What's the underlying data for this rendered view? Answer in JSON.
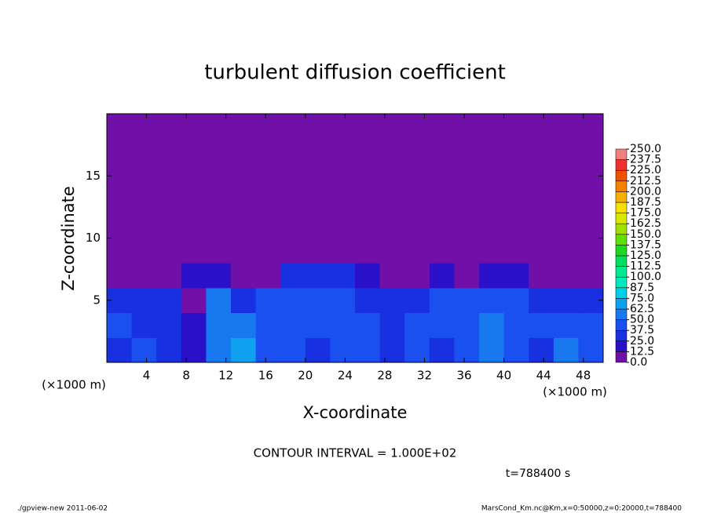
{
  "chart_data": {
    "type": "heatmap",
    "title": "turbulent diffusion coefficient",
    "x_label": "X-coordinate",
    "y_label": "Z-coordinate",
    "x_unit_label": "(×1000 m)",
    "y_unit_label": "(×1000 m)",
    "xlim": [
      0,
      50
    ],
    "ylim": [
      0,
      20
    ],
    "xticks": [
      4,
      8,
      12,
      16,
      20,
      24,
      28,
      32,
      36,
      40,
      44,
      48
    ],
    "yticks": [
      5,
      10,
      15
    ],
    "z": [
      [
        37,
        40,
        30,
        15,
        62,
        70,
        45,
        40,
        35,
        45,
        40,
        30,
        40,
        35,
        45,
        55,
        45,
        35,
        50,
        40
      ],
      [
        40,
        35,
        30,
        15,
        55,
        60,
        40,
        45,
        40,
        40,
        40,
        35,
        40,
        40,
        45,
        60,
        40,
        40,
        45,
        40
      ],
      [
        35,
        30,
        25,
        10,
        50,
        35,
        40,
        45,
        45,
        40,
        35,
        30,
        35,
        40,
        40,
        45,
        40,
        35,
        35,
        35
      ],
      [
        5,
        0,
        5,
        15,
        20,
        5,
        10,
        30,
        35,
        30,
        15,
        0,
        5,
        15,
        10,
        20,
        15,
        5,
        5,
        5
      ],
      [
        5,
        5,
        8,
        5,
        0,
        5,
        5,
        8,
        5,
        5,
        8,
        5,
        5,
        8,
        8,
        5,
        8,
        5,
        5,
        0
      ],
      [
        5,
        5,
        8,
        8,
        5,
        0,
        5,
        5,
        5,
        5,
        5,
        5,
        5,
        5,
        5,
        5,
        8,
        5,
        5,
        0
      ],
      [
        8,
        5,
        8,
        10,
        5,
        0,
        5,
        5,
        0,
        0,
        5,
        0,
        0,
        5,
        0,
        0,
        0,
        0,
        0,
        0
      ],
      [
        0,
        0,
        0,
        0,
        0,
        0,
        0,
        0,
        0,
        0,
        0,
        0,
        0,
        0,
        0,
        0,
        0,
        0,
        0,
        0
      ],
      [
        0,
        0,
        0,
        0,
        0,
        0,
        0,
        0,
        0,
        0,
        0,
        0,
        0,
        0,
        0,
        0,
        0,
        0,
        0,
        0
      ],
      [
        0,
        0,
        0,
        0,
        0,
        0,
        0,
        0,
        0,
        0,
        0,
        0,
        0,
        0,
        0,
        0,
        0,
        0,
        0,
        0
      ]
    ],
    "colorbar": {
      "ticks": [
        {
          "value": 0,
          "label": "0.0"
        },
        {
          "value": 12.5,
          "label": "12.5"
        },
        {
          "value": 25,
          "label": "25.0"
        },
        {
          "value": 37.5,
          "label": "37.5"
        },
        {
          "value": 50,
          "label": "50.0"
        },
        {
          "value": 62.5,
          "label": "62.5"
        },
        {
          "value": 75,
          "label": "75.0"
        },
        {
          "value": 87.5,
          "label": "87.5"
        },
        {
          "value": 100,
          "label": "100.0"
        },
        {
          "value": 112.5,
          "label": "112.5"
        },
        {
          "value": 125,
          "label": "125.0"
        },
        {
          "value": 137.5,
          "label": "137.5"
        },
        {
          "value": 150,
          "label": "150.0"
        },
        {
          "value": 162.5,
          "label": "162.5"
        },
        {
          "value": 175,
          "label": "175.0"
        },
        {
          "value": 187.5,
          "label": "187.5"
        },
        {
          "value": 200,
          "label": "200.0"
        },
        {
          "value": 212.5,
          "label": "212.5"
        },
        {
          "value": 225,
          "label": "225.0"
        },
        {
          "value": 237.5,
          "label": "237.5"
        },
        {
          "value": 250,
          "label": "250.0"
        }
      ],
      "colors": [
        "#7010a8",
        "#2a10c8",
        "#1830e0",
        "#1a50f0",
        "#1878f0",
        "#10a0f0",
        "#00d0e8",
        "#00e8c0",
        "#00e890",
        "#00e060",
        "#20d820",
        "#60e000",
        "#a0e000",
        "#d8e800",
        "#f8e000",
        "#f8b000",
        "#f88000",
        "#f05000",
        "#f03030",
        "#f08080"
      ]
    },
    "contour_interval": "CONTOUR INTERVAL = 1.000E+02",
    "time_label": "t=788400 s",
    "footer_left": "./gpview-new  2011-06-02",
    "footer_right": "MarsCond_Km.nc@Km,x=0:50000,z=0:20000,t=788400"
  }
}
